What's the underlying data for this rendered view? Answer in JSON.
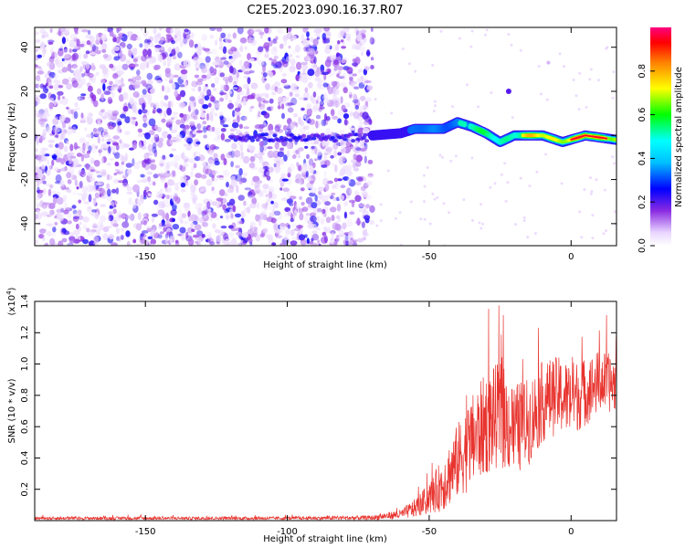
{
  "figure_title": "C2E5.2023.090.16.37.R07",
  "chart_data": [
    {
      "type": "heatmap",
      "title": "C2E5.2023.090.16.37.R07",
      "xlabel": "Height of straight line (km)",
      "ylabel": "Frequency (Hz)",
      "xlim": [
        -189,
        16
      ],
      "ylim": [
        -50,
        49
      ],
      "x_ticks": [
        -150,
        -100,
        -50,
        0
      ],
      "y_ticks": [
        -40,
        -20,
        0,
        20,
        40
      ],
      "noise_region_x": [
        -189,
        -70
      ],
      "signal_track": {
        "description_values": [
          {
            "x": -70,
            "y": 0
          },
          {
            "x": -60,
            "y": 1
          },
          {
            "x": -55,
            "y": 3
          },
          {
            "x": -45,
            "y": 3
          },
          {
            "x": -40,
            "y": 6
          },
          {
            "x": -35,
            "y": 4
          },
          {
            "x": -30,
            "y": 1
          },
          {
            "x": -25,
            "y": -3
          },
          {
            "x": -20,
            "y": 0
          },
          {
            "x": -10,
            "y": 0
          },
          {
            "x": -3,
            "y": -3
          },
          {
            "x": 5,
            "y": 0
          },
          {
            "x": 16,
            "y": -2
          }
        ]
      },
      "colorbar": {
        "label": "Normalized spectral amplitude",
        "range": [
          0,
          1
        ],
        "ticks": [
          0.0,
          0.2,
          0.4,
          0.6,
          0.8
        ]
      }
    },
    {
      "type": "line",
      "xlabel": "Height of straight line (km)",
      "ylabel": "SNR (10 * v/v)",
      "y_multiplier": "(x10",
      "y_multiplier_exp": "4",
      "xlim": [
        -189,
        16
      ],
      "ylim": [
        0,
        14000
      ],
      "x_ticks": [
        -150,
        -100,
        -50,
        0
      ],
      "y_ticks": [
        0.2,
        0.4,
        0.6,
        0.8,
        1.0,
        1.2,
        1.4
      ],
      "series": [
        {
          "color": "#e8342f",
          "x": [
            -189,
            -100,
            -70,
            -60,
            -55,
            -50,
            -45,
            -40,
            -35,
            -30,
            -25,
            -20,
            -15,
            -10,
            -5,
            0,
            5,
            10,
            16
          ],
          "values": [
            150,
            150,
            180,
            400,
            800,
            1400,
            2400,
            3800,
            5000,
            6200,
            6800,
            5800,
            6300,
            7600,
            8000,
            7800,
            8200,
            8900,
            8700
          ],
          "noise_amplitude": [
            100,
            100,
            150,
            300,
            600,
            1000,
            1800,
            2400,
            3000,
            3300,
            3400,
            3000,
            2800,
            2600,
            2500,
            2400,
            2200,
            2000,
            1800
          ]
        }
      ]
    }
  ]
}
